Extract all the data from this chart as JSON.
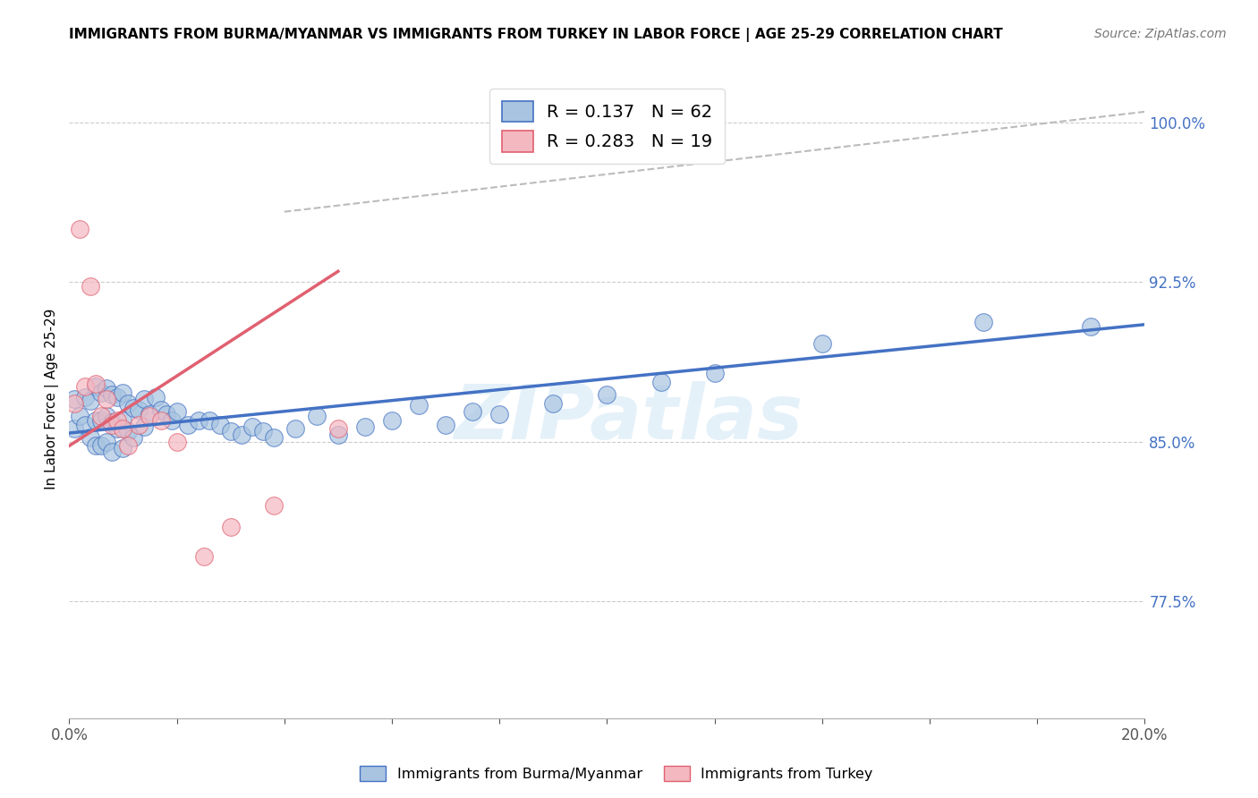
{
  "title": "IMMIGRANTS FROM BURMA/MYANMAR VS IMMIGRANTS FROM TURKEY IN LABOR FORCE | AGE 25-29 CORRELATION CHART",
  "source": "Source: ZipAtlas.com",
  "ylabel": "In Labor Force | Age 25-29",
  "xlim": [
    0.0,
    0.2
  ],
  "ylim": [
    0.72,
    1.02
  ],
  "blue_color": "#a8c4e0",
  "blue_line_color": "#4472c4",
  "pink_color": "#f4b8c1",
  "pink_line_color": "#e06070",
  "gray_line_color": "#cccccc",
  "legend_blue_label": "R = 0.137   N = 62",
  "legend_pink_label": "R = 0.283   N = 19",
  "watermark": "ZIPatlas",
  "blue_scatter_x": [
    0.001,
    0.001,
    0.002,
    0.003,
    0.003,
    0.004,
    0.004,
    0.005,
    0.005,
    0.005,
    0.006,
    0.006,
    0.006,
    0.007,
    0.007,
    0.007,
    0.008,
    0.008,
    0.008,
    0.009,
    0.009,
    0.01,
    0.01,
    0.01,
    0.011,
    0.011,
    0.012,
    0.012,
    0.013,
    0.014,
    0.014,
    0.015,
    0.016,
    0.017,
    0.018,
    0.019,
    0.02,
    0.022,
    0.024,
    0.026,
    0.028,
    0.03,
    0.032,
    0.034,
    0.036,
    0.038,
    0.042,
    0.046,
    0.05,
    0.055,
    0.06,
    0.065,
    0.07,
    0.075,
    0.08,
    0.09,
    0.1,
    0.11,
    0.12,
    0.14,
    0.17,
    0.19
  ],
  "blue_scatter_y": [
    0.87,
    0.856,
    0.862,
    0.871,
    0.858,
    0.869,
    0.852,
    0.876,
    0.86,
    0.848,
    0.873,
    0.86,
    0.848,
    0.875,
    0.862,
    0.85,
    0.872,
    0.859,
    0.845,
    0.871,
    0.856,
    0.873,
    0.86,
    0.847,
    0.868,
    0.855,
    0.866,
    0.852,
    0.865,
    0.87,
    0.857,
    0.863,
    0.871,
    0.865,
    0.863,
    0.86,
    0.864,
    0.858,
    0.86,
    0.86,
    0.858,
    0.855,
    0.853,
    0.857,
    0.855,
    0.852,
    0.856,
    0.862,
    0.853,
    0.857,
    0.86,
    0.867,
    0.858,
    0.864,
    0.863,
    0.868,
    0.872,
    0.878,
    0.882,
    0.896,
    0.906,
    0.904
  ],
  "pink_scatter_x": [
    0.001,
    0.002,
    0.003,
    0.004,
    0.005,
    0.006,
    0.007,
    0.008,
    0.009,
    0.01,
    0.011,
    0.013,
    0.015,
    0.017,
    0.02,
    0.025,
    0.03,
    0.038,
    0.05
  ],
  "pink_scatter_y": [
    0.868,
    0.95,
    0.876,
    0.923,
    0.877,
    0.862,
    0.87,
    0.858,
    0.86,
    0.856,
    0.848,
    0.858,
    0.862,
    0.86,
    0.85,
    0.796,
    0.81,
    0.82,
    0.856
  ],
  "blue_trend_x": [
    0.0,
    0.2
  ],
  "blue_trend_y": [
    0.854,
    0.905
  ],
  "pink_trend_x": [
    0.0,
    0.05
  ],
  "pink_trend_y": [
    0.848,
    0.93
  ],
  "gray_trend_x": [
    0.04,
    0.2
  ],
  "gray_trend_y": [
    0.958,
    1.005
  ]
}
